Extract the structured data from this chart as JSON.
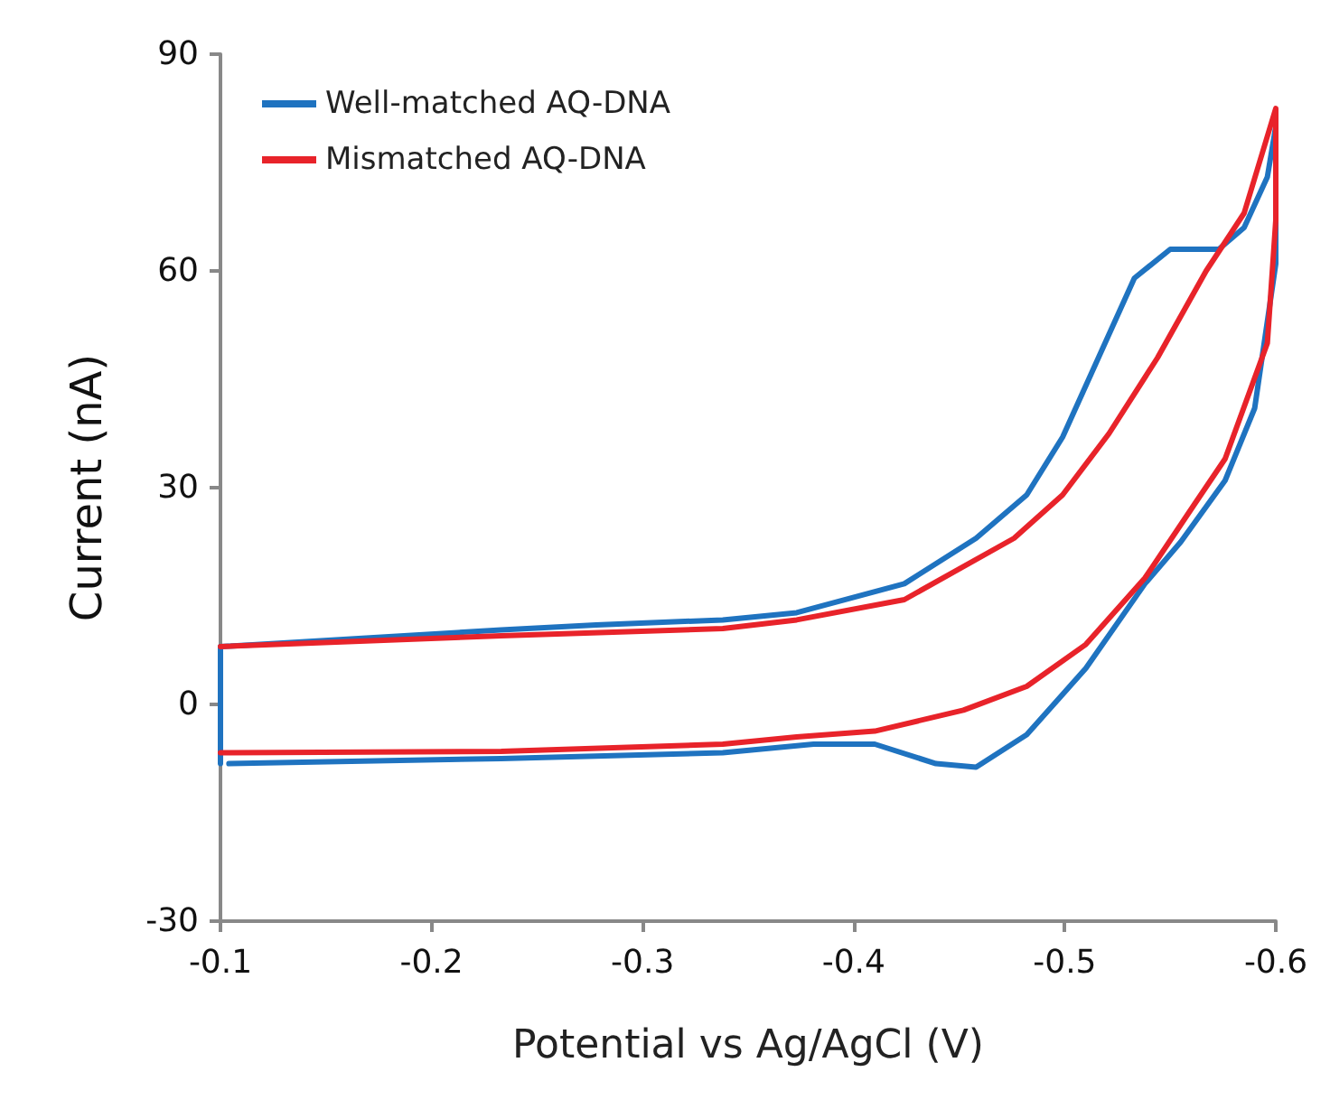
{
  "chart_data": {
    "type": "line",
    "xlabel": "Potential vs Ag/AgCl (V)",
    "ylabel": "Current (nA)",
    "xlim": [
      -0.1,
      -0.6
    ],
    "xticks": [
      -0.1,
      -0.2,
      -0.3,
      -0.4,
      -0.5,
      -0.6
    ],
    "ylim": [
      -30,
      90
    ],
    "yticks": [
      -30,
      0,
      30,
      60,
      90
    ],
    "grid": false,
    "legend": "top left",
    "marker": "none",
    "line_style": "solid",
    "series": [
      {
        "name": "Well-matched AQ-DNA",
        "color": "#1f73c0",
        "x": [
          -0.1,
          -0.1,
          -0.233,
          -0.278,
          -0.338,
          -0.373,
          -0.424,
          -0.458,
          -0.482,
          -0.499,
          -0.516,
          -0.533,
          -0.55,
          -0.573,
          -0.585,
          -0.596,
          -0.6,
          -0.6,
          -0.59,
          -0.576,
          -0.555,
          -0.538,
          -0.51,
          -0.482,
          -0.458,
          -0.439,
          -0.41,
          -0.381,
          -0.338,
          -0.233,
          -0.104
        ],
        "values": [
          -8.2,
          8,
          10.3,
          11,
          11.7,
          12.7,
          16.7,
          23,
          29,
          37,
          48,
          59,
          63,
          63,
          66,
          73,
          80,
          61,
          41,
          31,
          22.5,
          16.7,
          5,
          -4.2,
          -8.7,
          -8.2,
          -5.5,
          -5.5,
          -6.7,
          -7.5,
          -8.2
        ]
      },
      {
        "name": "Mismatched AQ-DNA",
        "color": "#e8232a",
        "x": [
          -0.1,
          -0.233,
          -0.338,
          -0.373,
          -0.424,
          -0.476,
          -0.499,
          -0.521,
          -0.544,
          -0.567,
          -0.585,
          -0.6,
          -0.6,
          -0.596,
          -0.576,
          -0.561,
          -0.538,
          -0.51,
          -0.482,
          -0.452,
          -0.41,
          -0.373,
          -0.338,
          -0.233,
          -0.1
        ],
        "values": [
          8,
          9.5,
          10.5,
          11.7,
          14.5,
          23,
          29,
          37.5,
          48,
          60,
          68,
          82.5,
          67,
          50,
          34,
          27.5,
          17.5,
          8.3,
          2.5,
          -0.8,
          -3.7,
          -4.5,
          -5.5,
          -6.5,
          -6.7
        ]
      }
    ]
  }
}
